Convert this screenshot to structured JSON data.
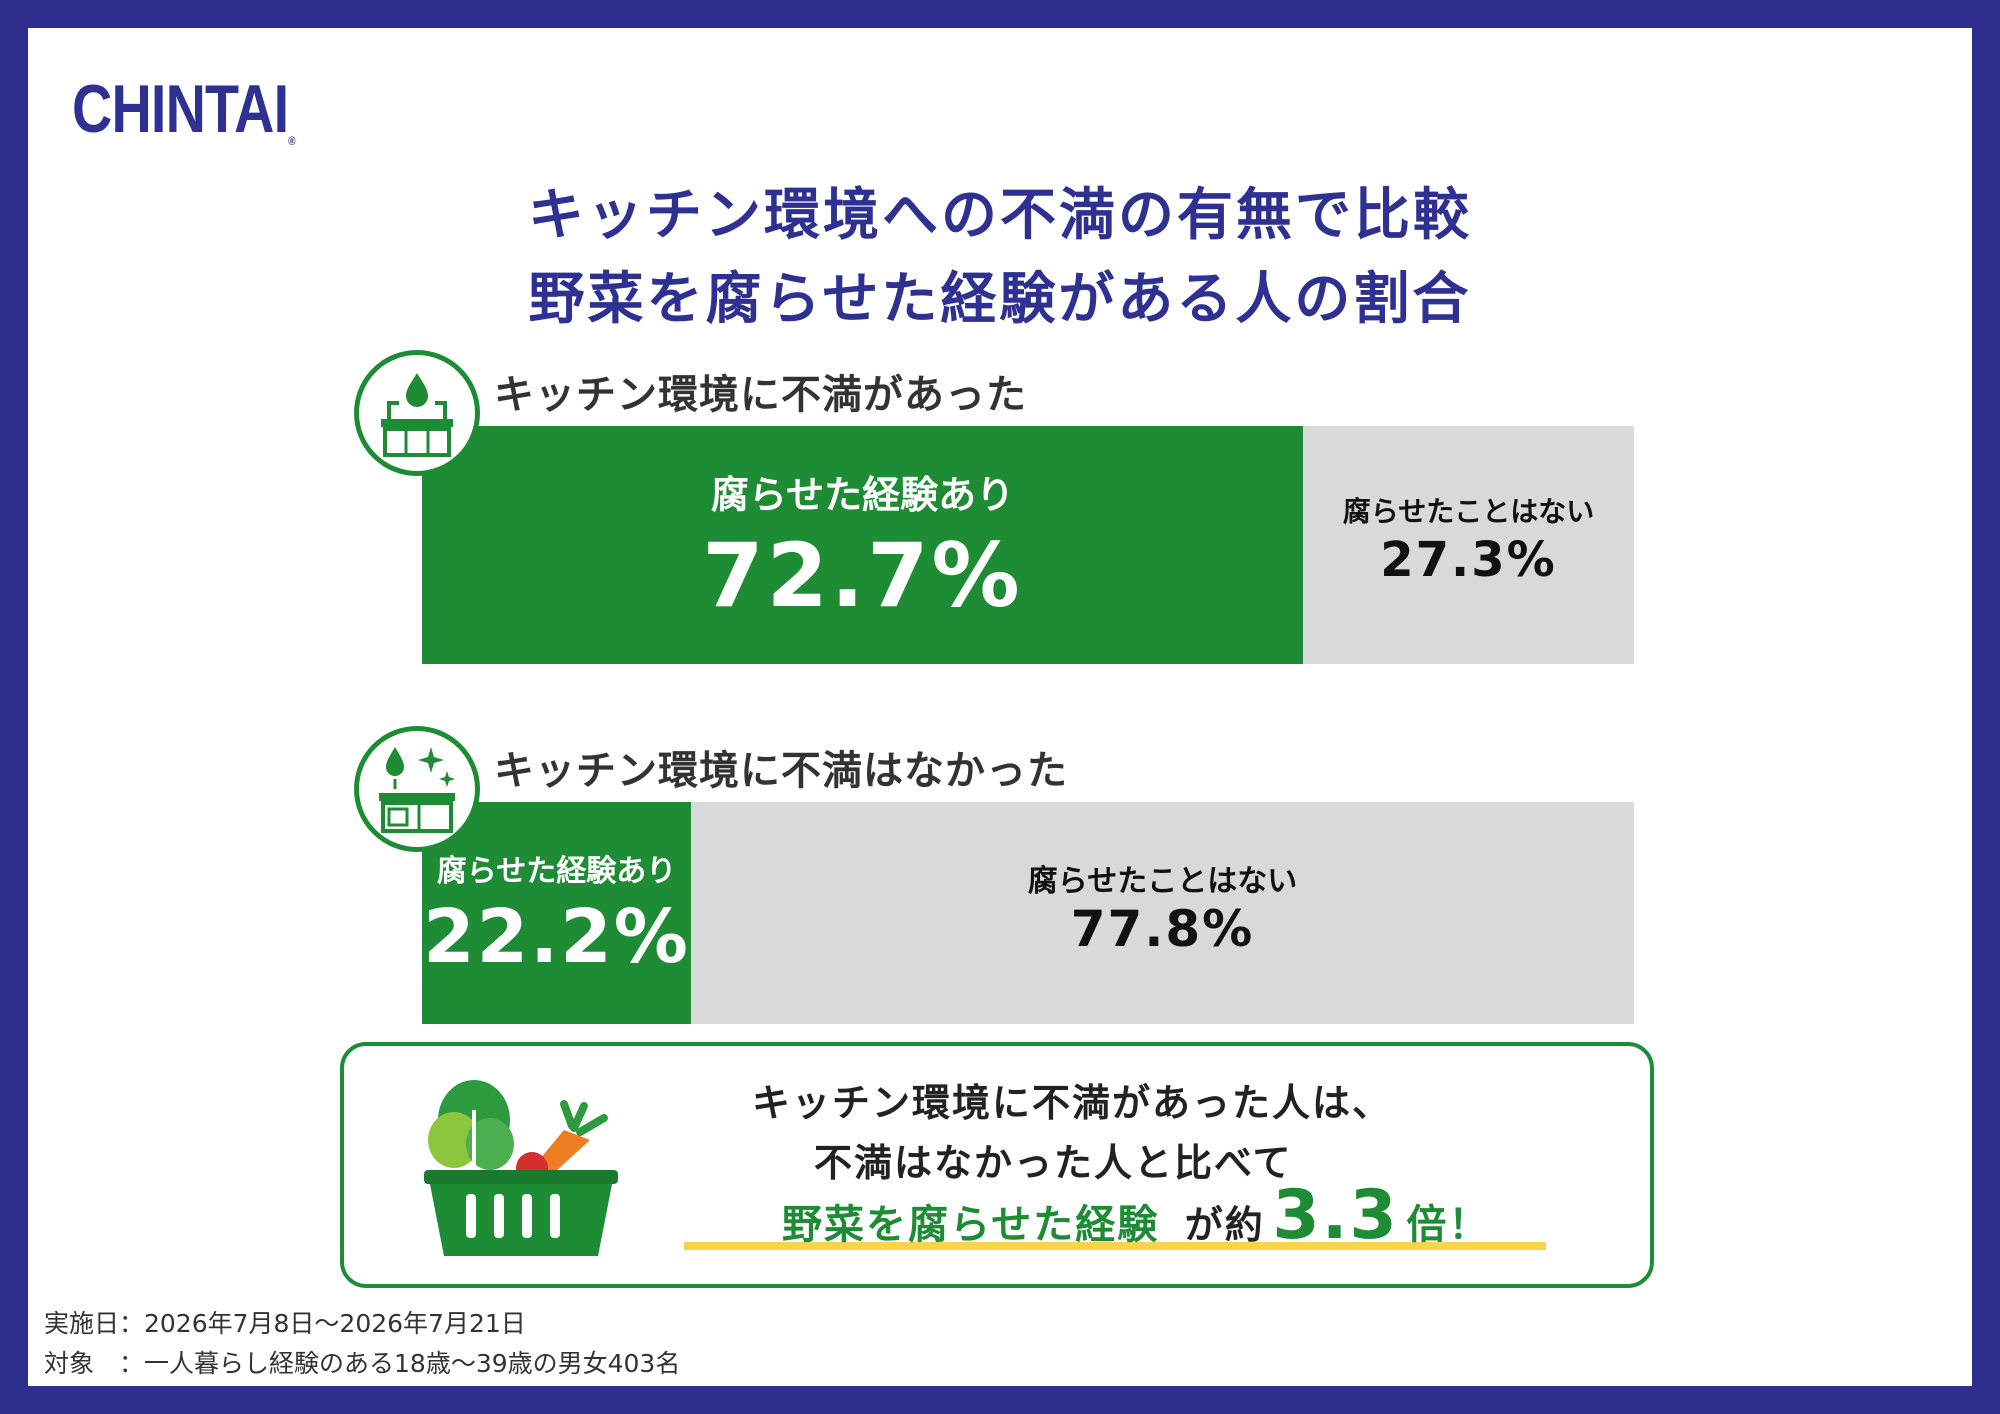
{
  "brand": {
    "logo": "CHINTAI",
    "registered": "®"
  },
  "title": {
    "line1": "キッチン環境への不満の有無で比較",
    "line2": "野菜を腐らせた経験がある人の割合"
  },
  "colors": {
    "frame": "#2e2f8f",
    "brand": "#2e3192",
    "green": "#1d8c34",
    "gray": "#d9d9d9",
    "highlight": "#f7d44c"
  },
  "chart_data": {
    "type": "bar",
    "orientation": "horizontal-stacked-100",
    "categories": [
      "キッチン環境に不満があった",
      "キッチン環境に不満はなかった"
    ],
    "series": [
      {
        "name": "腐らせた経験あり",
        "values": [
          72.7,
          22.2
        ],
        "labels": [
          "72.7%",
          "22.2%"
        ]
      },
      {
        "name": "腐らせたことはない",
        "values": [
          27.3,
          77.8
        ],
        "labels": [
          "27.3%",
          "77.8%"
        ]
      }
    ],
    "unit": "%",
    "xlim": [
      0,
      100
    ]
  },
  "groups": [
    {
      "icon": "kitchen-sink-icon"
    },
    {
      "icon": "clean-kitchen-icon"
    }
  ],
  "summary": {
    "icon": "vegetable-basket-icon",
    "line1": "キッチン環境に不満があった人は、",
    "line2": "不満はなかった人と比べて",
    "emphasis": "野菜を腐らせた経験",
    "connector": "が約",
    "ratio": "3.3",
    "suffix": "倍！"
  },
  "footer": {
    "date": "実施日：2026年7月8日〜2026年7月21日",
    "target": "対象　：一人暮らし経験のある18歳〜39歳の男女403名"
  }
}
